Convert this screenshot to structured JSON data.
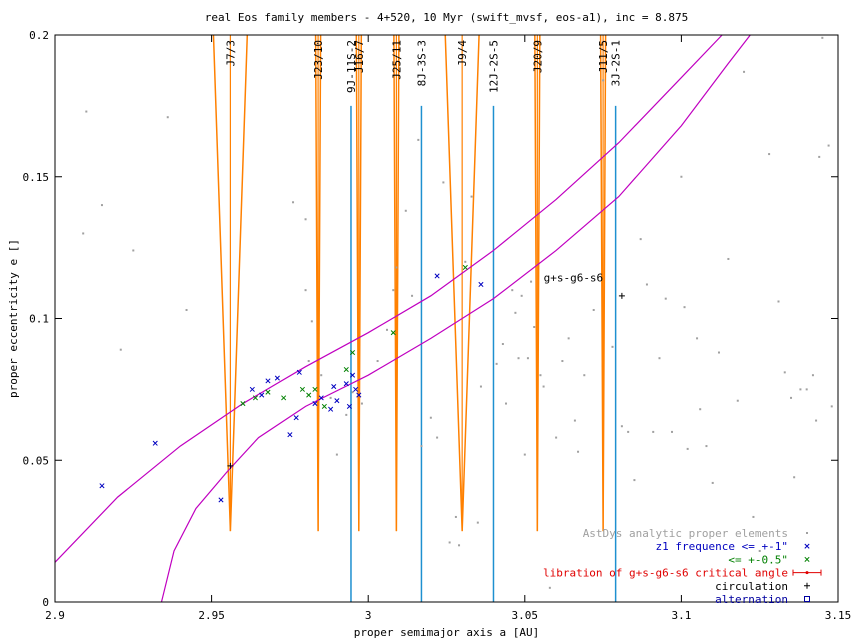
{
  "chart_data": {
    "type": "scatter",
    "title": "real Eos family members - 4+520, 10 Myr (swift_mvsf, eos-a1), inc = 8.875",
    "xlabel": "proper semimajor axis a [AU]",
    "ylabel": "proper eccentricity e []",
    "xlim": [
      2.9,
      3.15
    ],
    "ylim": [
      0,
      0.2
    ],
    "x_ticks": [
      2.9,
      2.95,
      3,
      3.05,
      3.1,
      3.15
    ],
    "x_tick_labels": [
      "2.9",
      "2.95",
      "3",
      "3.05",
      "3.1",
      "3.15"
    ],
    "y_ticks": [
      0,
      0.05,
      0.1,
      0.15,
      0.2
    ],
    "y_tick_labels": [
      "0",
      "0.05",
      "0.1",
      "0.15",
      "0.2"
    ],
    "legend_position": "bottom-right",
    "legend": [
      {
        "label": "AstDys analytic proper elements",
        "color": "#a0a0a0",
        "marker": "dot"
      },
      {
        "label": "z1 frequence <= +-1\"",
        "color": "#0000c0",
        "marker": "x"
      },
      {
        "label": "<= +-0.5\"",
        "color": "#008000",
        "marker": "x"
      },
      {
        "label": "libration of g+s-g6-s6 critical angle",
        "color": "#e00000",
        "marker": "errorbar"
      },
      {
        "label": "circulation",
        "color": "#000000",
        "marker": "plus"
      },
      {
        "label": "alternation",
        "color": "#0000a0",
        "marker": "square"
      }
    ],
    "resonances": [
      {
        "label": "J7/3",
        "a": 2.956,
        "color": "#ff8000",
        "ymax": 0.2
      },
      {
        "label": "J23/10",
        "a": 2.984,
        "color": "#ff8000",
        "ymax": 0.2
      },
      {
        "label": "9J-11S-2",
        "a": 2.9945,
        "color": "#1e90d0",
        "ymax": 0.175
      },
      {
        "label": "J16/7",
        "a": 2.997,
        "color": "#ff8000",
        "ymax": 0.2
      },
      {
        "label": "J25/11",
        "a": 3.009,
        "color": "#ff8000",
        "ymax": 0.2
      },
      {
        "label": "8J-3S-3",
        "a": 3.017,
        "color": "#1e90d0",
        "ymax": 0.175
      },
      {
        "label": "J9/4",
        "a": 3.03,
        "color": "#ff8000",
        "ymax": 0.2
      },
      {
        "label": "12J-2S-5",
        "a": 3.04,
        "color": "#1e90d0",
        "ymax": 0.175
      },
      {
        "label": "J20/9",
        "a": 3.054,
        "color": "#ff8000",
        "ymax": 0.2
      },
      {
        "label": "J11/5",
        "a": 3.075,
        "color": "#ff8000",
        "ymax": 0.2
      },
      {
        "label": "3J-2S-1",
        "a": 3.079,
        "color": "#1e90d0",
        "ymax": 0.175
      }
    ],
    "resonance_curve_label": "g+s-g6-s6",
    "z1_upper_curve": [
      [
        2.9,
        0.014
      ],
      [
        2.92,
        0.037
      ],
      [
        2.94,
        0.055
      ],
      [
        2.96,
        0.07
      ],
      [
        2.98,
        0.083
      ],
      [
        3.0,
        0.095
      ],
      [
        3.02,
        0.108
      ],
      [
        3.04,
        0.124
      ],
      [
        3.06,
        0.142
      ],
      [
        3.08,
        0.162
      ],
      [
        3.1,
        0.185
      ],
      [
        3.113,
        0.2
      ]
    ],
    "z1_lower_curve": [
      [
        2.934,
        0.0
      ],
      [
        2.938,
        0.018
      ],
      [
        2.945,
        0.033
      ],
      [
        2.955,
        0.046
      ],
      [
        2.965,
        0.058
      ],
      [
        2.98,
        0.069
      ],
      [
        3.0,
        0.08
      ],
      [
        3.02,
        0.093
      ],
      [
        3.04,
        0.107
      ],
      [
        3.06,
        0.124
      ],
      [
        3.08,
        0.143
      ],
      [
        3.1,
        0.168
      ],
      [
        3.115,
        0.19
      ],
      [
        3.122,
        0.2
      ]
    ],
    "series": [
      {
        "name": "AstDys analytic proper elements",
        "points": [
          [
            2.91,
            0.173
          ],
          [
            2.909,
            0.13
          ],
          [
            2.915,
            0.14
          ],
          [
            2.921,
            0.089
          ],
          [
            2.925,
            0.124
          ],
          [
            2.936,
            0.171
          ],
          [
            2.942,
            0.103
          ],
          [
            2.976,
            0.141
          ],
          [
            2.98,
            0.135
          ],
          [
            2.98,
            0.11
          ],
          [
            2.982,
            0.099
          ],
          [
            2.981,
            0.085
          ],
          [
            2.985,
            0.08
          ],
          [
            2.988,
            0.072
          ],
          [
            2.99,
            0.052
          ],
          [
            2.993,
            0.066
          ],
          [
            2.995,
            0.074
          ],
          [
            2.998,
            0.07
          ],
          [
            3.003,
            0.085
          ],
          [
            3.006,
            0.096
          ],
          [
            3.008,
            0.11
          ],
          [
            3.009,
            0.118
          ],
          [
            3.012,
            0.138
          ],
          [
            3.014,
            0.108
          ],
          [
            3.016,
            0.163
          ],
          [
            3.017,
            0.055
          ],
          [
            3.02,
            0.065
          ],
          [
            3.022,
            0.058
          ],
          [
            3.024,
            0.148
          ],
          [
            3.026,
            0.021
          ],
          [
            3.028,
            0.03
          ],
          [
            3.029,
            0.02
          ],
          [
            3.031,
            0.12
          ],
          [
            3.033,
            0.143
          ],
          [
            3.035,
            0.028
          ],
          [
            3.036,
            0.076
          ],
          [
            3.041,
            0.084
          ],
          [
            3.043,
            0.091
          ],
          [
            3.044,
            0.07
          ],
          [
            3.046,
            0.11
          ],
          [
            3.047,
            0.102
          ],
          [
            3.048,
            0.086
          ],
          [
            3.049,
            0.108
          ],
          [
            3.05,
            0.052
          ],
          [
            3.051,
            0.086
          ],
          [
            3.052,
            0.113
          ],
          [
            3.053,
            0.097
          ],
          [
            3.055,
            0.08
          ],
          [
            3.056,
            0.076
          ],
          [
            3.058,
            0.005
          ],
          [
            3.06,
            0.058
          ],
          [
            3.062,
            0.085
          ],
          [
            3.064,
            0.093
          ],
          [
            3.066,
            0.064
          ],
          [
            3.067,
            0.053
          ],
          [
            3.069,
            0.08
          ],
          [
            3.072,
            0.103
          ],
          [
            3.075,
            0.184
          ],
          [
            3.078,
            0.09
          ],
          [
            3.081,
            0.062
          ],
          [
            3.083,
            0.06
          ],
          [
            3.085,
            0.043
          ],
          [
            3.087,
            0.128
          ],
          [
            3.089,
            0.112
          ],
          [
            3.091,
            0.06
          ],
          [
            3.093,
            0.086
          ],
          [
            3.095,
            0.107
          ],
          [
            3.097,
            0.06
          ],
          [
            3.1,
            0.15
          ],
          [
            3.101,
            0.104
          ],
          [
            3.102,
            0.054
          ],
          [
            3.105,
            0.093
          ],
          [
            3.106,
            0.068
          ],
          [
            3.108,
            0.055
          ],
          [
            3.11,
            0.042
          ],
          [
            3.112,
            0.088
          ],
          [
            3.115,
            0.121
          ],
          [
            3.118,
            0.071
          ],
          [
            3.12,
            0.187
          ],
          [
            3.123,
            0.03
          ],
          [
            3.125,
            0.018
          ],
          [
            3.128,
            0.158
          ],
          [
            3.131,
            0.106
          ],
          [
            3.133,
            0.081
          ],
          [
            3.135,
            0.072
          ],
          [
            3.136,
            0.044
          ],
          [
            3.138,
            0.075
          ],
          [
            3.14,
            0.075
          ],
          [
            3.142,
            0.08
          ],
          [
            3.143,
            0.064
          ],
          [
            3.144,
            0.157
          ],
          [
            3.145,
            0.199
          ],
          [
            3.147,
            0.161
          ],
          [
            3.148,
            0.069
          ]
        ]
      },
      {
        "name": "z1 frequence <= +-1\"",
        "points": [
          [
            2.915,
            0.041
          ],
          [
            2.932,
            0.056
          ],
          [
            2.953,
            0.036
          ],
          [
            2.963,
            0.075
          ],
          [
            2.966,
            0.073
          ],
          [
            2.968,
            0.078
          ],
          [
            2.971,
            0.079
          ],
          [
            2.975,
            0.059
          ],
          [
            2.977,
            0.065
          ],
          [
            2.978,
            0.081
          ],
          [
            2.983,
            0.07
          ],
          [
            2.985,
            0.072
          ],
          [
            2.988,
            0.068
          ],
          [
            2.989,
            0.076
          ],
          [
            2.99,
            0.071
          ],
          [
            2.993,
            0.077
          ],
          [
            2.994,
            0.069
          ],
          [
            2.995,
            0.08
          ],
          [
            2.996,
            0.075
          ],
          [
            2.997,
            0.073
          ],
          [
            3.022,
            0.115
          ],
          [
            3.036,
            0.112
          ]
        ]
      },
      {
        "name": "<= +-0.5\"",
        "points": [
          [
            2.96,
            0.07
          ],
          [
            2.964,
            0.072
          ],
          [
            2.968,
            0.074
          ],
          [
            2.973,
            0.072
          ],
          [
            2.979,
            0.075
          ],
          [
            2.981,
            0.073
          ],
          [
            2.983,
            0.075
          ],
          [
            2.986,
            0.069
          ],
          [
            2.993,
            0.082
          ],
          [
            2.995,
            0.088
          ],
          [
            3.008,
            0.095
          ],
          [
            3.031,
            0.118
          ]
        ]
      },
      {
        "name": "circulation",
        "points": [
          [
            2.956,
            0.048
          ],
          [
            3.081,
            0.108
          ]
        ]
      }
    ]
  }
}
